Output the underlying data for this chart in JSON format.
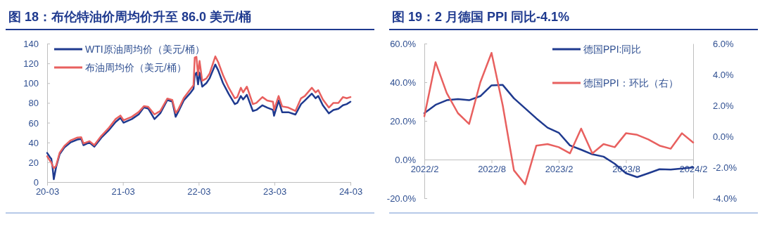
{
  "chart_data": [
    {
      "type": "line",
      "title": "图 18：布伦特油价周均价升至 86.0 美元/桶",
      "legend": "top left",
      "line_style": "solid",
      "xlim": [
        "2020-03-01",
        "2024-03-01"
      ],
      "xticks": [
        {
          "value": "2020-03-01",
          "label": "20-03"
        },
        {
          "value": "2021-03-01",
          "label": "21-03"
        },
        {
          "value": "2022-03-01",
          "label": "22-03"
        },
        {
          "value": "2023-03-01",
          "label": "23-03"
        },
        {
          "value": "2024-03-01",
          "label": "24-03"
        }
      ],
      "ylim": [
        0,
        140
      ],
      "yticks": [
        0,
        20,
        40,
        60,
        80,
        100,
        120,
        140
      ],
      "x": [
        "2020-03-01",
        "2020-03-16",
        "2020-03-21",
        "2020-03-27",
        "2020-04-02",
        "2020-04-13",
        "2020-04-30",
        "2020-05-23",
        "2020-06-21",
        "2020-07-25",
        "2020-08-12",
        "2020-08-23",
        "2020-09-21",
        "2020-10-14",
        "2020-11-17",
        "2020-12-21",
        "2021-01-25",
        "2021-02-17",
        "2021-03-04",
        "2021-04-13",
        "2021-05-16",
        "2021-06-10",
        "2021-07-01",
        "2021-07-31",
        "2021-08-28",
        "2021-10-01",
        "2021-10-25",
        "2021-11-10",
        "2021-11-22",
        "2021-12-19",
        "2022-01-18",
        "2022-02-04",
        "2022-02-10",
        "2022-02-18",
        "2022-02-26",
        "2022-03-05",
        "2022-03-18",
        "2022-04-07",
        "2022-04-22",
        "2022-05-20",
        "2022-06-03",
        "2022-06-26",
        "2022-07-24",
        "2022-08-22",
        "2022-09-03",
        "2022-09-20",
        "2022-10-01",
        "2022-10-19",
        "2022-11-17",
        "2022-12-04",
        "2023-01-02",
        "2023-01-25",
        "2023-02-22",
        "2023-02-27",
        "2023-03-21",
        "2023-04-07",
        "2023-05-07",
        "2023-06-10",
        "2023-07-07",
        "2023-07-25",
        "2023-08-28",
        "2023-09-15",
        "2023-09-28",
        "2023-10-20",
        "2023-11-18",
        "2023-12-10",
        "2024-01-03",
        "2024-01-25",
        "2024-02-12",
        "2024-03-01"
      ],
      "series": [
        {
          "name": "WTI原油周均价（美元/桶）",
          "color": "#1f3a8f",
          "values": [
            29.4,
            24.7,
            23.5,
            15,
            2.8,
            15,
            28,
            35,
            40,
            43,
            43.6,
            37.3,
            40,
            35.8,
            44.8,
            51.9,
            60.8,
            64.9,
            60,
            63.7,
            68.4,
            75.5,
            74.3,
            63.7,
            69.6,
            83,
            81.4,
            66,
            70.8,
            82.5,
            89.6,
            94.3,
            108,
            110.6,
            98.8,
            110.6,
            96.5,
            100,
            104.7,
            118.8,
            112.9,
            100,
            88.9,
            78.8,
            80,
            87,
            83.5,
            88.2,
            71.8,
            72.9,
            77.6,
            75.3,
            72.9,
            67,
            82.4,
            70.6,
            70.6,
            68.2,
            78.8,
            82.4,
            89.4,
            84.7,
            87,
            77.6,
            69.4,
            72.9,
            74.1,
            77.6,
            78.8,
            81.2
          ]
        },
        {
          "name": "布油周均价（美元/桶）",
          "color": "#e8605f",
          "values": [
            26,
            21,
            20,
            16.5,
            14,
            16.5,
            29.5,
            36.5,
            42,
            45,
            45.3,
            39,
            41.3,
            37.3,
            46.7,
            54.2,
            63.7,
            67.2,
            62.5,
            66,
            70.8,
            76.7,
            76,
            68.4,
            71.9,
            84.4,
            83,
            70,
            73.1,
            84.9,
            93.2,
            97.9,
            125.9,
            126.6,
            108.2,
            122.4,
            102.4,
            104.7,
            109.4,
            127,
            121.2,
            108.2,
            95.3,
            84.7,
            85.9,
            95.3,
            90.6,
            96.5,
            78.8,
            80,
            85.9,
            82.4,
            81.2,
            72.9,
            87,
            76.5,
            75.3,
            71.8,
            84.7,
            87,
            95.3,
            90.6,
            92.9,
            83.5,
            75.3,
            80,
            80,
            85.9,
            84.7,
            85.9
          ]
        }
      ]
    },
    {
      "type": "line",
      "title": "图 19：2 月德国 PPI 同比-4.1%",
      "legend": "top right",
      "line_style": "solid",
      "categories": [
        "2022/2",
        null,
        null,
        null,
        null,
        null,
        "2022/8",
        null,
        null,
        null,
        null,
        null,
        "2023/2",
        null,
        null,
        null,
        null,
        null,
        "2023/8",
        null,
        null,
        null,
        null,
        null,
        "2024/2"
      ],
      "ylim": [
        -20,
        60
      ],
      "yticks": [
        {
          "value": -20,
          "label": "-20.0%"
        },
        {
          "value": 0,
          "label": "0.0%"
        },
        {
          "value": 20,
          "label": "20.0%"
        },
        {
          "value": 40,
          "label": "40.0%"
        },
        {
          "value": 60,
          "label": "60.0%"
        }
      ],
      "y2lim": [
        -4,
        6
      ],
      "y2ticks": [
        {
          "value": -4,
          "label": "-4.0%"
        },
        {
          "value": -2,
          "label": "-2.0%"
        },
        {
          "value": 0,
          "label": "0.0%"
        },
        {
          "value": 2,
          "label": "2.0%"
        },
        {
          "value": 4,
          "label": "4.0%"
        },
        {
          "value": 6,
          "label": "6.0%"
        }
      ],
      "series": [
        {
          "name": "德国PPI:同比",
          "color": "#1f3a8f",
          "values": [
            24.0,
            28.3,
            30.7,
            31.3,
            30.7,
            32.8,
            38.4,
            38.6,
            31.7,
            26.5,
            21.3,
            16.5,
            13.9,
            7.3,
            5.1,
            2.7,
            1.5,
            -2.2,
            -7.1,
            -9.1,
            -7.1,
            -5.0,
            -5.2,
            -4.6,
            -4.1
          ]
        },
        {
          "name": "德国PPI：环比（右）",
          "color": "#e8605f",
          "axis": "y2",
          "values": [
            1.3,
            4.8,
            2.8,
            1.5,
            0.8,
            3.5,
            5.4,
            2.0,
            -2.2,
            -3.1,
            -0.6,
            -0.5,
            -0.7,
            -1.1,
            0.5,
            -1.1,
            -0.5,
            -0.7,
            0.2,
            0.1,
            -0.2,
            -0.6,
            -0.8,
            0.2,
            -0.4
          ]
        }
      ]
    }
  ]
}
